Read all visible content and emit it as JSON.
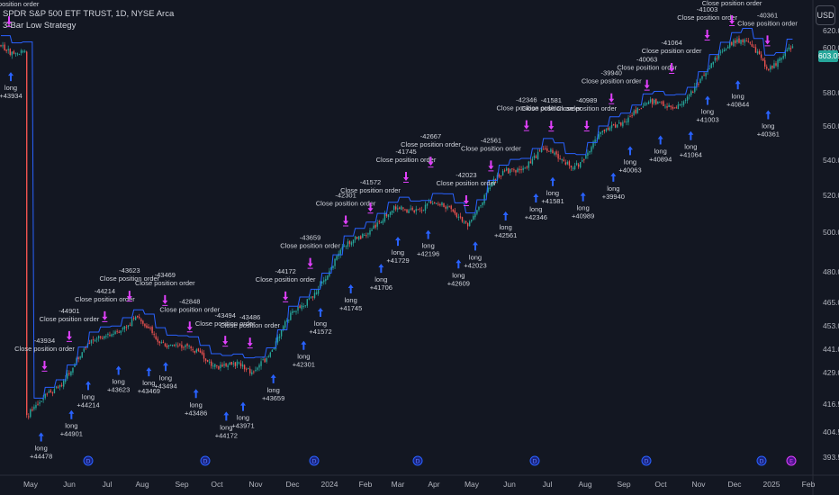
{
  "header": {
    "symbol_line": "SPDR S&P 500 ETF TRUST, 1D, NYSE Arca",
    "strategy_name": "3-Bar Low Strategy",
    "currency_button": "USD",
    "last_price": "603.05"
  },
  "colors": {
    "background": "#131722",
    "up": "#26a69a",
    "down": "#ef5350",
    "entry_arrow": "#2962ff",
    "exit_arrow": "#e040fb",
    "ma_line": "#2962ff",
    "text": "#d1d4dc"
  },
  "chart_data": {
    "type": "candlestick",
    "y_axis": {
      "labels": [
        "620.00",
        "600.00",
        "580.00",
        "560.00",
        "540.00",
        "520.00",
        "500.00",
        "480.00",
        "465.00",
        "453.00",
        "441.00",
        "429.00",
        "416.50",
        "404.50",
        "393.50"
      ]
    },
    "x_axis": {
      "labels": [
        "May",
        "Jun",
        "Jul",
        "Aug",
        "Sep",
        "Oct",
        "Nov",
        "Dec",
        "2024",
        "Feb",
        "Mar",
        "Apr",
        "May",
        "Jun",
        "Jul",
        "Aug",
        "Sep",
        "Oct",
        "Nov",
        "Dec",
        "2025",
        "Feb"
      ]
    },
    "close_anchors": [
      {
        "x": "May 2023",
        "y": 413
      },
      {
        "x": "Jun 2023",
        "y": 428
      },
      {
        "x": "Jul 2023",
        "y": 445
      },
      {
        "x": "Aug 2023",
        "y": 456
      },
      {
        "x": "Sep 2023",
        "y": 445
      },
      {
        "x": "Oct 2023",
        "y": 432
      },
      {
        "x": "Nov 2023",
        "y": 427
      },
      {
        "x": "Dec 2023",
        "y": 458
      },
      {
        "x": "2024",
        "y": 478
      },
      {
        "x": "Feb 2024",
        "y": 496
      },
      {
        "x": "Mar 2024",
        "y": 511
      },
      {
        "x": "Apr 2024",
        "y": 520
      },
      {
        "x": "May 2024",
        "y": 504
      },
      {
        "x": "Jun 2024",
        "y": 530
      },
      {
        "x": "Jul 2024",
        "y": 548
      },
      {
        "x": "Aug 2024",
        "y": 540
      },
      {
        "x": "Sep 2024",
        "y": 560
      },
      {
        "x": "Oct 2024",
        "y": 574
      },
      {
        "x": "Nov 2024",
        "y": 582
      },
      {
        "x": "Dec 2024",
        "y": 605
      },
      {
        "x": "2025",
        "y": 590
      },
      {
        "x": "Jan 2025 end",
        "y": 603
      }
    ],
    "legend": [
      "SPDR S&P 500 ETF TRUST, 1D, NYSE Arca",
      "3-Bar Low Strategy"
    ],
    "series": [
      {
        "name": "SPDR S&P 500 ETF TRUST",
        "kind": "candles"
      },
      {
        "name": "3-Bar Low Strategy",
        "kind": "signals"
      }
    ],
    "entries": [
      {
        "x": "May 2023",
        "label": "long",
        "value": "+43934"
      },
      {
        "x": "May 2023",
        "label": "long",
        "value": "+44478"
      },
      {
        "x": "May 2023",
        "label": "long",
        "value": "+44901"
      },
      {
        "x": "Jun 2023",
        "label": "long",
        "value": "+44214"
      },
      {
        "x": "Jun 2023",
        "label": "long",
        "value": "+43623"
      },
      {
        "x": "Jul 2023",
        "label": "long",
        "value": "+43469"
      },
      {
        "x": "Aug 2023",
        "label": "long",
        "value": "+43494"
      },
      {
        "x": "Sep 2023",
        "label": "long",
        "value": "+43486"
      },
      {
        "x": "Sep 2023",
        "label": "long",
        "value": "+44172"
      },
      {
        "x": "Oct 2023",
        "label": "long",
        "value": "+43971"
      },
      {
        "x": "Nov 2023",
        "label": "long",
        "value": "+43659"
      },
      {
        "x": "Dec 2023",
        "label": "long",
        "value": "+42301"
      },
      {
        "x": "2024",
        "label": "long",
        "value": "+41572"
      },
      {
        "x": "2024",
        "label": "long",
        "value": "+41745"
      },
      {
        "x": "Feb 2024",
        "label": "long",
        "value": "+41706"
      },
      {
        "x": "Feb 2024",
        "label": "long",
        "value": "+41729"
      },
      {
        "x": "Mar 2024",
        "label": "long",
        "value": "+42196"
      },
      {
        "x": "Mar 2024",
        "label": "long",
        "value": "+42609"
      },
      {
        "x": "Apr 2024",
        "label": "long",
        "value": "+42023"
      },
      {
        "x": "May 2024",
        "label": "long",
        "value": "+42561"
      },
      {
        "x": "Jun 2024",
        "label": "long",
        "value": "+42346"
      },
      {
        "x": "Jul 2024",
        "label": "long",
        "value": "+41581"
      },
      {
        "x": "Aug 2024",
        "label": "long",
        "value": "+40989"
      },
      {
        "x": "Aug 2024",
        "label": "long",
        "value": "+39940"
      },
      {
        "x": "Sep 2024",
        "label": "long",
        "value": "+40063"
      },
      {
        "x": "Sep 2024",
        "label": "long",
        "value": "+40894"
      },
      {
        "x": "Oct 2024",
        "label": "long",
        "value": "+41064"
      },
      {
        "x": "Oct 2024",
        "label": "long",
        "value": "+41003"
      },
      {
        "x": "Nov 2024",
        "label": "long",
        "value": "+40844"
      },
      {
        "x": "Dec 2024",
        "label": "long",
        "value": "+40361"
      }
    ],
    "exits": [
      {
        "x": "May 2023",
        "label": "Close position order",
        "value": "-43265"
      },
      {
        "x": "May 2023",
        "label": "Close position order",
        "value": "-43934"
      },
      {
        "x": "Jun 2023",
        "label": "Close position order",
        "value": "-44901"
      },
      {
        "x": "Jun 2023",
        "label": "Close position order",
        "value": "-44214"
      },
      {
        "x": "Jul 2023",
        "label": "Close position order",
        "value": "-43623"
      },
      {
        "x": "Jul 2023",
        "label": "Close position order",
        "value": "-43469"
      },
      {
        "x": "Aug 2023",
        "label": "Close position order",
        "value": "-42848"
      },
      {
        "x": "Sep 2023",
        "label": "Close position order",
        "value": "-43494"
      },
      {
        "x": "Sep 2023",
        "label": "Close position order",
        "value": "-43486"
      },
      {
        "x": "Oct 2023",
        "label": "Close position order",
        "value": "-44172"
      },
      {
        "x": "Nov 2023",
        "label": "Close position order",
        "value": "-43659"
      },
      {
        "x": "Dec 2023",
        "label": "Close position order",
        "value": "-42301"
      },
      {
        "x": "2024",
        "label": "Close position order",
        "value": "-41572"
      },
      {
        "x": "2024",
        "label": "Close position order",
        "value": "-41745"
      },
      {
        "x": "Mar 2024",
        "label": "Close position order",
        "value": "-42667"
      },
      {
        "x": "Apr 2024",
        "label": "Close position order",
        "value": "-42023"
      },
      {
        "x": "May 2024",
        "label": "Close position order",
        "value": "-42561"
      },
      {
        "x": "Jun 2024",
        "label": "Close position order",
        "value": "-42346"
      },
      {
        "x": "Jul 2024",
        "label": "Close position order",
        "value": "-41581"
      },
      {
        "x": "Aug 2024",
        "label": "Close position order",
        "value": "-40989"
      },
      {
        "x": "Sep 2024",
        "label": "Close position order",
        "value": "-39940"
      },
      {
        "x": "Sep 2024",
        "label": "Close position order",
        "value": "-40063"
      },
      {
        "x": "Oct 2024",
        "label": "Close position order",
        "value": "-41064"
      },
      {
        "x": "Nov 2024",
        "label": "Close position order",
        "value": "-41003"
      },
      {
        "x": "Dec 2024",
        "label": "Close position order",
        "value": "-40844"
      },
      {
        "x": "Jan 2025",
        "label": "Close position order",
        "value": "-40361"
      }
    ],
    "markers": [
      {
        "icon": "dividend-icon",
        "x": "Jun 2023"
      },
      {
        "icon": "dividend-icon",
        "x": "Sep 2023"
      },
      {
        "icon": "dividend-icon",
        "x": "Dec 2023"
      },
      {
        "icon": "dividend-icon",
        "x": "Mar 2024"
      },
      {
        "icon": "dividend-icon",
        "x": "Jun 2024"
      },
      {
        "icon": "dividend-icon",
        "x": "Sep 2024"
      },
      {
        "icon": "dividend-icon",
        "x": "Dec 2024"
      },
      {
        "icon": "earnings-icon",
        "x": "Feb 2025"
      }
    ]
  }
}
